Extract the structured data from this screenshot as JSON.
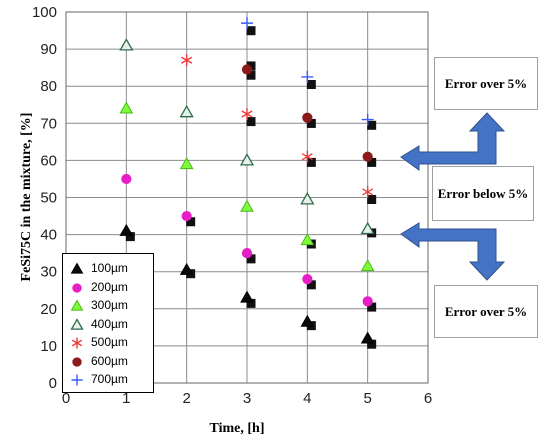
{
  "chart_data": {
    "type": "scatter",
    "xlabel": "Time, [h]",
    "ylabel": "FeSi75C in the mixture, [%]",
    "xlim": [
      0,
      6
    ],
    "ylim": [
      0,
      100
    ],
    "xticks": [
      0,
      1,
      2,
      3,
      4,
      5,
      6
    ],
    "yticks": [
      0,
      10,
      20,
      30,
      40,
      50,
      60,
      70,
      80,
      90,
      100
    ],
    "grid": true,
    "legend_position": "bottom-left",
    "series": [
      {
        "name": "100µm",
        "marker": "filled-triangle",
        "color": "#0a0a0a",
        "x": [
          1,
          2,
          3,
          4,
          5
        ],
        "y": [
          41,
          30.5,
          23,
          16.5,
          12
        ]
      },
      {
        "name": "200µm",
        "marker": "filled-circle",
        "color": "#e61ec8",
        "x": [
          1,
          2,
          3,
          4,
          5
        ],
        "y": [
          55,
          45,
          35,
          28,
          22
        ]
      },
      {
        "name": "300µm",
        "marker": "filled-triangle",
        "color": "#7cfc3a",
        "x": [
          1,
          2,
          3,
          4,
          5
        ],
        "y": [
          74,
          59,
          47.5,
          38.5,
          31.5
        ]
      },
      {
        "name": "400µm",
        "marker": "open-triangle",
        "color": "#2e6b4a",
        "x": [
          1,
          2,
          3,
          4,
          5
        ],
        "y": [
          91,
          73,
          60,
          49.5,
          41.5
        ]
      },
      {
        "name": "500µm",
        "marker": "star",
        "color": "#ee3b3b",
        "x": [
          2,
          3,
          4,
          5
        ],
        "y": [
          87,
          72.5,
          61,
          51.5
        ]
      },
      {
        "name": "600µm",
        "marker": "filled-circle",
        "color": "#8b1a1a",
        "x": [
          3,
          4,
          5
        ],
        "y": [
          84.5,
          71.5,
          61
        ]
      },
      {
        "name": "700µm",
        "marker": "plus",
        "color": "#3a5bff",
        "x": [
          3,
          4,
          5
        ],
        "y": [
          97,
          82.5,
          71
        ]
      }
    ],
    "calculated_points": {
      "x": [
        1,
        2,
        2,
        3,
        3,
        3,
        3,
        3,
        3,
        4,
        4,
        4,
        4,
        4,
        4,
        5,
        5,
        5,
        5,
        5,
        5
      ],
      "y": [
        40,
        30,
        44,
        22,
        34,
        71,
        83.5,
        86,
        95.5,
        16,
        27,
        70.5,
        81,
        60,
        38,
        11,
        21,
        50,
        60,
        70,
        41
      ]
    },
    "annotations": [
      {
        "text": "Error over 5%"
      },
      {
        "text": "Error below 5%"
      },
      {
        "text": "Error over 5%"
      }
    ]
  }
}
